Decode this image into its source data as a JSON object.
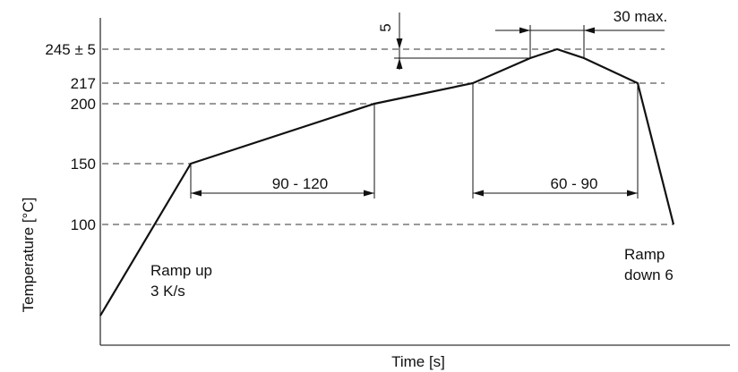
{
  "axes": {
    "y_label": "Temperature [°C]",
    "x_label": "Time [s]"
  },
  "y_ticks": [
    "245 ± 5",
    "217",
    "200",
    "150",
    "100"
  ],
  "dimensions": {
    "tolerance": "5",
    "peak_time": "30 max.",
    "preheat_time": "90 - 120",
    "reflow_time": "60 - 90"
  },
  "annotations": {
    "ramp_up_line1": "Ramp up",
    "ramp_up_line2": "3 K/s",
    "ramp_down_line1": "Ramp",
    "ramp_down_line2": "down 6"
  },
  "colors": {
    "line": "#111111",
    "guide": "#333333",
    "background": "#ffffff"
  }
}
